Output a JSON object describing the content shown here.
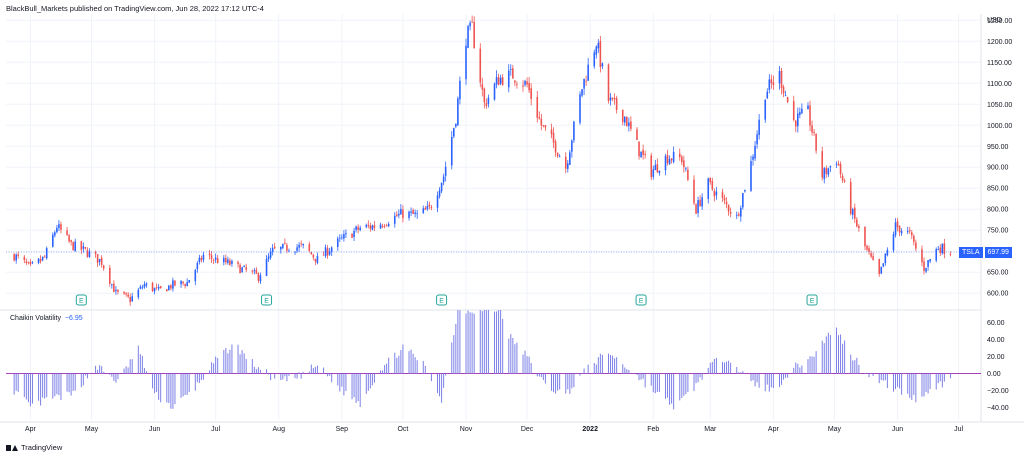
{
  "header": {
    "publish_note": "BlackBull_Markets published on TradingView.com, Jun 28, 2022 17:12 UTC-4"
  },
  "footer": {
    "logo_text": "TradingView"
  },
  "colors": {
    "up": "#2962ff",
    "down": "#ef5350",
    "volatility": "#7b7fe6",
    "zero_line": "#9c27b0",
    "last_price_line": "#2962ff",
    "earnings": "#26a69a"
  },
  "chart_data": [
    {
      "type": "candlestick",
      "symbol": "TSLA",
      "currency": "USD",
      "last_price": 697.99,
      "last_price_label": "697.99",
      "ylim": [
        560,
        1265
      ],
      "y_ticks": [
        600,
        650,
        700,
        750,
        800,
        850,
        900,
        950,
        1000,
        1050,
        1100,
        1150,
        1200,
        1250
      ],
      "y_tick_labels": [
        "600.00",
        "650.00",
        "700.00",
        "750.00",
        "800.00",
        "850.00",
        "900.00",
        "950.00",
        "1000.00",
        "1050.00",
        "1100.00",
        "1150.00",
        "1200.00",
        "1250.00"
      ],
      "x_labels": [
        "Apr",
        "May",
        "Jun",
        "Jul",
        "Aug",
        "Sep",
        "Oct",
        "Nov",
        "Dec",
        "2022",
        "Feb",
        "Mar",
        "Apr",
        "May",
        "Jun",
        "Jul"
      ],
      "earnings_marker_label": "E",
      "earnings_markers": [
        "Apr",
        "Jul",
        "Oct",
        "Jan",
        "Apr"
      ],
      "price_path": [
        [
          "2021-03-24",
          690
        ],
        [
          "2021-04-01",
          660
        ],
        [
          "2021-04-08",
          685
        ],
        [
          "2021-04-14",
          760
        ],
        [
          "2021-04-21",
          715
        ],
        [
          "2021-04-28",
          700
        ],
        [
          "2021-05-06",
          675
        ],
        [
          "2021-05-13",
          600
        ],
        [
          "2021-05-20",
          585
        ],
        [
          "2021-05-27",
          620
        ],
        [
          "2021-06-03",
          605
        ],
        [
          "2021-06-10",
          620
        ],
        [
          "2021-06-17",
          625
        ],
        [
          "2021-06-25",
          690
        ],
        [
          "2021-07-01",
          680
        ],
        [
          "2021-07-08",
          670
        ],
        [
          "2021-07-15",
          655
        ],
        [
          "2021-07-22",
          640
        ],
        [
          "2021-07-29",
          700
        ],
        [
          "2021-08-06",
          710
        ],
        [
          "2021-08-13",
          710
        ],
        [
          "2021-08-20",
          680
        ],
        [
          "2021-08-27",
          710
        ],
        [
          "2021-09-03",
          735
        ],
        [
          "2021-09-10",
          755
        ],
        [
          "2021-09-17",
          760
        ],
        [
          "2021-09-24",
          775
        ],
        [
          "2021-10-01",
          790
        ],
        [
          "2021-10-08",
          785
        ],
        [
          "2021-10-14",
          800
        ],
        [
          "2021-10-21",
          880
        ],
        [
          "2021-10-27",
          1020
        ],
        [
          "2021-11-01",
          1210
        ],
        [
          "2021-11-04",
          1230
        ],
        [
          "2021-11-10",
          1050
        ],
        [
          "2021-11-17",
          1110
        ],
        [
          "2021-11-24",
          1120
        ],
        [
          "2021-12-01",
          1095
        ],
        [
          "2021-12-08",
          1000
        ],
        [
          "2021-12-15",
          950
        ],
        [
          "2021-12-20",
          900
        ],
        [
          "2021-12-28",
          1090
        ],
        [
          "2022-01-04",
          1200
        ],
        [
          "2022-01-10",
          1060
        ],
        [
          "2022-01-18",
          1020
        ],
        [
          "2022-01-25",
          940
        ],
        [
          "2022-01-31",
          890
        ],
        [
          "2022-02-08",
          925
        ],
        [
          "2022-02-15",
          920
        ],
        [
          "2022-02-22",
          800
        ],
        [
          "2022-02-28",
          860
        ],
        [
          "2022-03-07",
          820
        ],
        [
          "2022-03-14",
          780
        ],
        [
          "2022-03-21",
          910
        ],
        [
          "2022-03-28",
          1080
        ],
        [
          "2022-04-04",
          1120
        ],
        [
          "2022-04-11",
          1010
        ],
        [
          "2022-04-18",
          1030
        ],
        [
          "2022-04-25",
          880
        ],
        [
          "2022-05-02",
          920
        ],
        [
          "2022-05-09",
          800
        ],
        [
          "2022-05-16",
          710
        ],
        [
          "2022-05-23",
          640
        ],
        [
          "2022-05-31",
          760
        ],
        [
          "2022-06-07",
          740
        ],
        [
          "2022-06-14",
          660
        ],
        [
          "2022-06-21",
          710
        ],
        [
          "2022-06-28",
          698
        ]
      ]
    },
    {
      "type": "histogram",
      "title": "Chaikin Volatility",
      "value_label": "−6.95",
      "value": -6.95,
      "ylim": [
        -55,
        75
      ],
      "y_ticks": [
        -40,
        -20,
        0,
        20,
        40,
        60
      ],
      "y_tick_labels": [
        "−40.00",
        "−20.00",
        "0.00",
        "20.00",
        "40.00",
        "60.00"
      ],
      "values_path": [
        [
          "2021-03-24",
          -20
        ],
        [
          "2021-04-01",
          -40
        ],
        [
          "2021-04-10",
          -30
        ],
        [
          "2021-04-22",
          -25
        ],
        [
          "2021-05-03",
          10
        ],
        [
          "2021-05-14",
          -10
        ],
        [
          "2021-05-24",
          30
        ],
        [
          "2021-06-01",
          -25
        ],
        [
          "2021-06-10",
          -40
        ],
        [
          "2021-06-20",
          -20
        ],
        [
          "2021-07-01",
          15
        ],
        [
          "2021-07-10",
          35
        ],
        [
          "2021-07-20",
          10
        ],
        [
          "2021-08-01",
          -10
        ],
        [
          "2021-08-10",
          -5
        ],
        [
          "2021-08-20",
          10
        ],
        [
          "2021-09-01",
          -20
        ],
        [
          "2021-09-10",
          -35
        ],
        [
          "2021-09-20",
          5
        ],
        [
          "2021-10-01",
          30
        ],
        [
          "2021-10-10",
          15
        ],
        [
          "2021-10-20",
          -30
        ],
        [
          "2021-10-28",
          75
        ],
        [
          "2021-11-18",
          75
        ],
        [
          "2021-11-22",
          45
        ],
        [
          "2021-12-01",
          20
        ],
        [
          "2021-12-10",
          -15
        ],
        [
          "2021-12-20",
          -25
        ],
        [
          "2022-01-01",
          10
        ],
        [
          "2022-01-10",
          25
        ],
        [
          "2022-01-20",
          5
        ],
        [
          "2022-02-01",
          -20
        ],
        [
          "2022-02-12",
          -40
        ],
        [
          "2022-02-20",
          -20
        ],
        [
          "2022-03-01",
          10
        ],
        [
          "2022-03-10",
          20
        ],
        [
          "2022-03-20",
          -10
        ],
        [
          "2022-04-01",
          -20
        ],
        [
          "2022-04-10",
          5
        ],
        [
          "2022-04-20",
          20
        ],
        [
          "2022-05-01",
          55
        ],
        [
          "2022-05-10",
          20
        ],
        [
          "2022-05-20",
          -5
        ],
        [
          "2022-06-01",
          -20
        ],
        [
          "2022-06-10",
          -30
        ],
        [
          "2022-06-20",
          -15
        ],
        [
          "2022-06-28",
          -7
        ]
      ]
    }
  ]
}
